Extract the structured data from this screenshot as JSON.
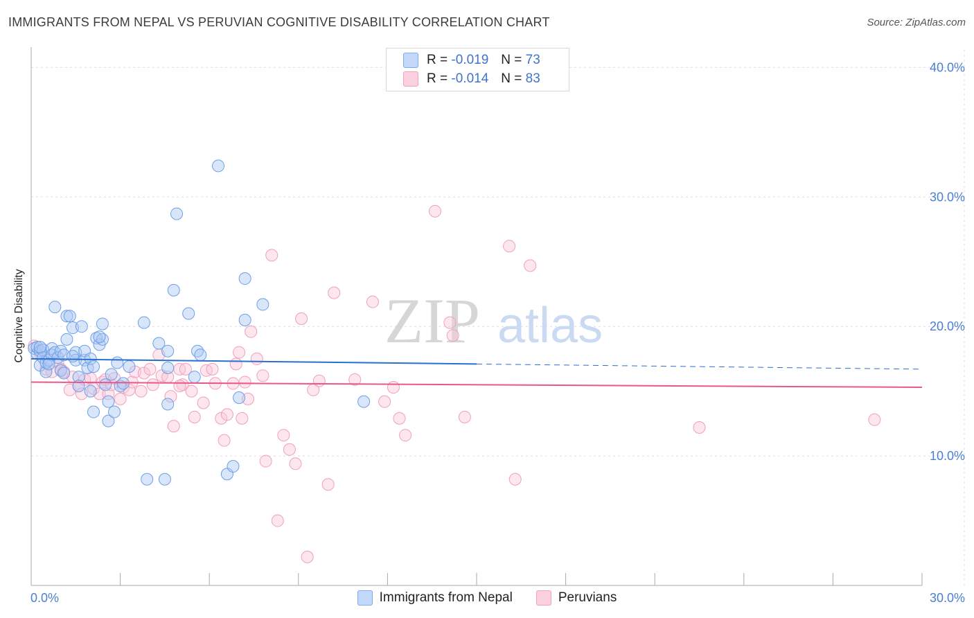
{
  "title": "IMMIGRANTS FROM NEPAL VS PERUVIAN COGNITIVE DISABILITY CORRELATION CHART",
  "source": "Source: ZipAtlas.com",
  "watermark": {
    "zip": "ZIP",
    "atlas": "atlas"
  },
  "colors": {
    "nepal": "#7aaaf0",
    "nepal_line": "#2b6fce",
    "peru": "#f2a2be",
    "peru_line": "#e8578a",
    "axis_text": "#4a7fd4"
  },
  "legend": {
    "series": [
      {
        "r_label": "R =",
        "r_value": "-0.019",
        "n_label": "N =",
        "n_value": "73"
      },
      {
        "r_label": "R =",
        "r_value": "-0.014",
        "n_label": "N =",
        "n_value": "83"
      }
    ]
  },
  "bottom_legend": [
    "Immigrants from Nepal",
    "Peruvians"
  ],
  "chart_data": {
    "type": "scatter",
    "xlabel": "",
    "ylabel": "Cognitive Disability",
    "xlim": [
      0,
      30
    ],
    "ylim": [
      0,
      42
    ],
    "x_tick_labels": [
      {
        "value": 0,
        "label": "0.0%"
      },
      {
        "value": 30,
        "label": "30.0%"
      }
    ],
    "y_tick_labels": [
      {
        "value": 10,
        "label": "10.0%"
      },
      {
        "value": 20,
        "label": "20.0%"
      },
      {
        "value": 30,
        "label": "30.0%"
      },
      {
        "value": 40,
        "label": "40.0%"
      }
    ],
    "grid": "horizontal dashed",
    "series": [
      {
        "name": "Immigrants from Nepal",
        "r": -0.019,
        "n": 73,
        "trend": {
          "x0": 0,
          "y0": 17.5,
          "x1": 15,
          "y1": 17.1,
          "dashed_to_x": 30,
          "dashed_to_y": 16.7
        },
        "points": [
          [
            0.1,
            18.3
          ],
          [
            0.2,
            17.9
          ],
          [
            0.2,
            18.4
          ],
          [
            0.3,
            18.1
          ],
          [
            0.3,
            17.0
          ],
          [
            0.4,
            18.2
          ],
          [
            0.4,
            17.6
          ],
          [
            0.5,
            16.5
          ],
          [
            0.5,
            17.2
          ],
          [
            0.6,
            17.4
          ],
          [
            0.7,
            18.3
          ],
          [
            0.7,
            17.8
          ],
          [
            0.8,
            21.5
          ],
          [
            0.8,
            18.0
          ],
          [
            0.9,
            17.6
          ],
          [
            1.0,
            18.1
          ],
          [
            1.0,
            16.6
          ],
          [
            1.1,
            17.8
          ],
          [
            1.1,
            16.4
          ],
          [
            1.2,
            19.0
          ],
          [
            1.2,
            20.8
          ],
          [
            1.3,
            20.8
          ],
          [
            1.4,
            19.9
          ],
          [
            1.5,
            18.0
          ],
          [
            1.5,
            17.4
          ],
          [
            1.6,
            16.1
          ],
          [
            1.6,
            15.4
          ],
          [
            1.7,
            20.0
          ],
          [
            1.8,
            17.4
          ],
          [
            1.8,
            18.1
          ],
          [
            1.9,
            16.8
          ],
          [
            2.0,
            17.5
          ],
          [
            2.0,
            15.0
          ],
          [
            2.1,
            16.9
          ],
          [
            2.1,
            13.4
          ],
          [
            2.2,
            19.1
          ],
          [
            2.3,
            18.6
          ],
          [
            2.4,
            19.0
          ],
          [
            2.4,
            20.2
          ],
          [
            2.5,
            15.5
          ],
          [
            2.6,
            14.2
          ],
          [
            2.6,
            12.7
          ],
          [
            2.7,
            16.3
          ],
          [
            2.8,
            13.4
          ],
          [
            2.9,
            17.2
          ],
          [
            3.0,
            15.4
          ],
          [
            3.1,
            15.6
          ],
          [
            3.3,
            16.9
          ],
          [
            3.8,
            20.3
          ],
          [
            3.9,
            8.2
          ],
          [
            4.3,
            18.7
          ],
          [
            4.5,
            8.2
          ],
          [
            4.6,
            14.0
          ],
          [
            4.6,
            16.8
          ],
          [
            4.6,
            18.1
          ],
          [
            4.8,
            22.8
          ],
          [
            4.9,
            28.7
          ],
          [
            5.3,
            21.0
          ],
          [
            5.5,
            16.1
          ],
          [
            5.6,
            18.1
          ],
          [
            5.7,
            17.8
          ],
          [
            6.3,
            32.4
          ],
          [
            6.6,
            8.6
          ],
          [
            6.8,
            9.2
          ],
          [
            7.0,
            14.5
          ],
          [
            7.2,
            23.7
          ],
          [
            7.2,
            20.5
          ],
          [
            7.8,
            21.7
          ],
          [
            11.2,
            14.2
          ],
          [
            2.3,
            19.2
          ],
          [
            1.4,
            17.7
          ],
          [
            0.3,
            18.4
          ],
          [
            0.6,
            17.1
          ]
        ]
      },
      {
        "name": "Peruvians",
        "r": -0.014,
        "n": 83,
        "trend": {
          "x0": 0,
          "y0": 15.7,
          "x1": 30,
          "y1": 15.3
        },
        "points": [
          [
            0.1,
            18.5
          ],
          [
            0.3,
            17.9
          ],
          [
            0.5,
            16.7
          ],
          [
            0.7,
            16.5
          ],
          [
            0.9,
            17.3
          ],
          [
            1.0,
            16.7
          ],
          [
            1.1,
            16.5
          ],
          [
            1.3,
            15.1
          ],
          [
            1.4,
            16.1
          ],
          [
            1.6,
            15.4
          ],
          [
            1.7,
            14.8
          ],
          [
            1.8,
            15.9
          ],
          [
            2.0,
            16.0
          ],
          [
            2.1,
            15.2
          ],
          [
            2.3,
            14.8
          ],
          [
            2.4,
            15.7
          ],
          [
            2.5,
            15.9
          ],
          [
            2.6,
            14.8
          ],
          [
            2.7,
            15.5
          ],
          [
            2.8,
            16.0
          ],
          [
            3.0,
            14.4
          ],
          [
            3.1,
            15.3
          ],
          [
            3.3,
            15.1
          ],
          [
            3.4,
            15.7
          ],
          [
            3.5,
            16.5
          ],
          [
            3.7,
            15.0
          ],
          [
            3.8,
            16.4
          ],
          [
            4.0,
            16.7
          ],
          [
            4.1,
            15.5
          ],
          [
            4.3,
            17.8
          ],
          [
            4.4,
            16.2
          ],
          [
            4.6,
            16.1
          ],
          [
            4.7,
            14.6
          ],
          [
            4.8,
            12.3
          ],
          [
            5.0,
            16.7
          ],
          [
            5.1,
            15.5
          ],
          [
            5.2,
            16.7
          ],
          [
            5.4,
            15.0
          ],
          [
            5.5,
            13.0
          ],
          [
            5.8,
            14.1
          ],
          [
            5.9,
            16.6
          ],
          [
            6.1,
            16.7
          ],
          [
            6.2,
            15.6
          ],
          [
            6.4,
            12.9
          ],
          [
            6.5,
            11.2
          ],
          [
            6.6,
            13.2
          ],
          [
            6.8,
            15.6
          ],
          [
            6.9,
            17.1
          ],
          [
            7.0,
            18.0
          ],
          [
            7.2,
            15.7
          ],
          [
            7.3,
            14.4
          ],
          [
            7.4,
            19.6
          ],
          [
            7.6,
            17.5
          ],
          [
            7.8,
            16.2
          ],
          [
            7.9,
            9.6
          ],
          [
            8.1,
            25.5
          ],
          [
            8.3,
            5.0
          ],
          [
            8.5,
            11.6
          ],
          [
            8.7,
            10.5
          ],
          [
            8.9,
            9.4
          ],
          [
            9.1,
            20.6
          ],
          [
            9.3,
            2.2
          ],
          [
            9.5,
            15.1
          ],
          [
            9.7,
            15.8
          ],
          [
            10.0,
            7.8
          ],
          [
            10.2,
            22.6
          ],
          [
            10.9,
            15.9
          ],
          [
            11.5,
            21.9
          ],
          [
            11.9,
            14.2
          ],
          [
            12.2,
            15.3
          ],
          [
            12.4,
            12.9
          ],
          [
            12.6,
            11.6
          ],
          [
            13.6,
            28.9
          ],
          [
            14.1,
            20.3
          ],
          [
            14.2,
            19.3
          ],
          [
            14.6,
            13.0
          ],
          [
            16.1,
            26.2
          ],
          [
            16.3,
            8.2
          ],
          [
            16.8,
            24.7
          ],
          [
            22.5,
            12.2
          ],
          [
            28.4,
            12.8
          ],
          [
            7.1,
            12.9
          ],
          [
            5.0,
            15.4
          ]
        ]
      }
    ]
  }
}
